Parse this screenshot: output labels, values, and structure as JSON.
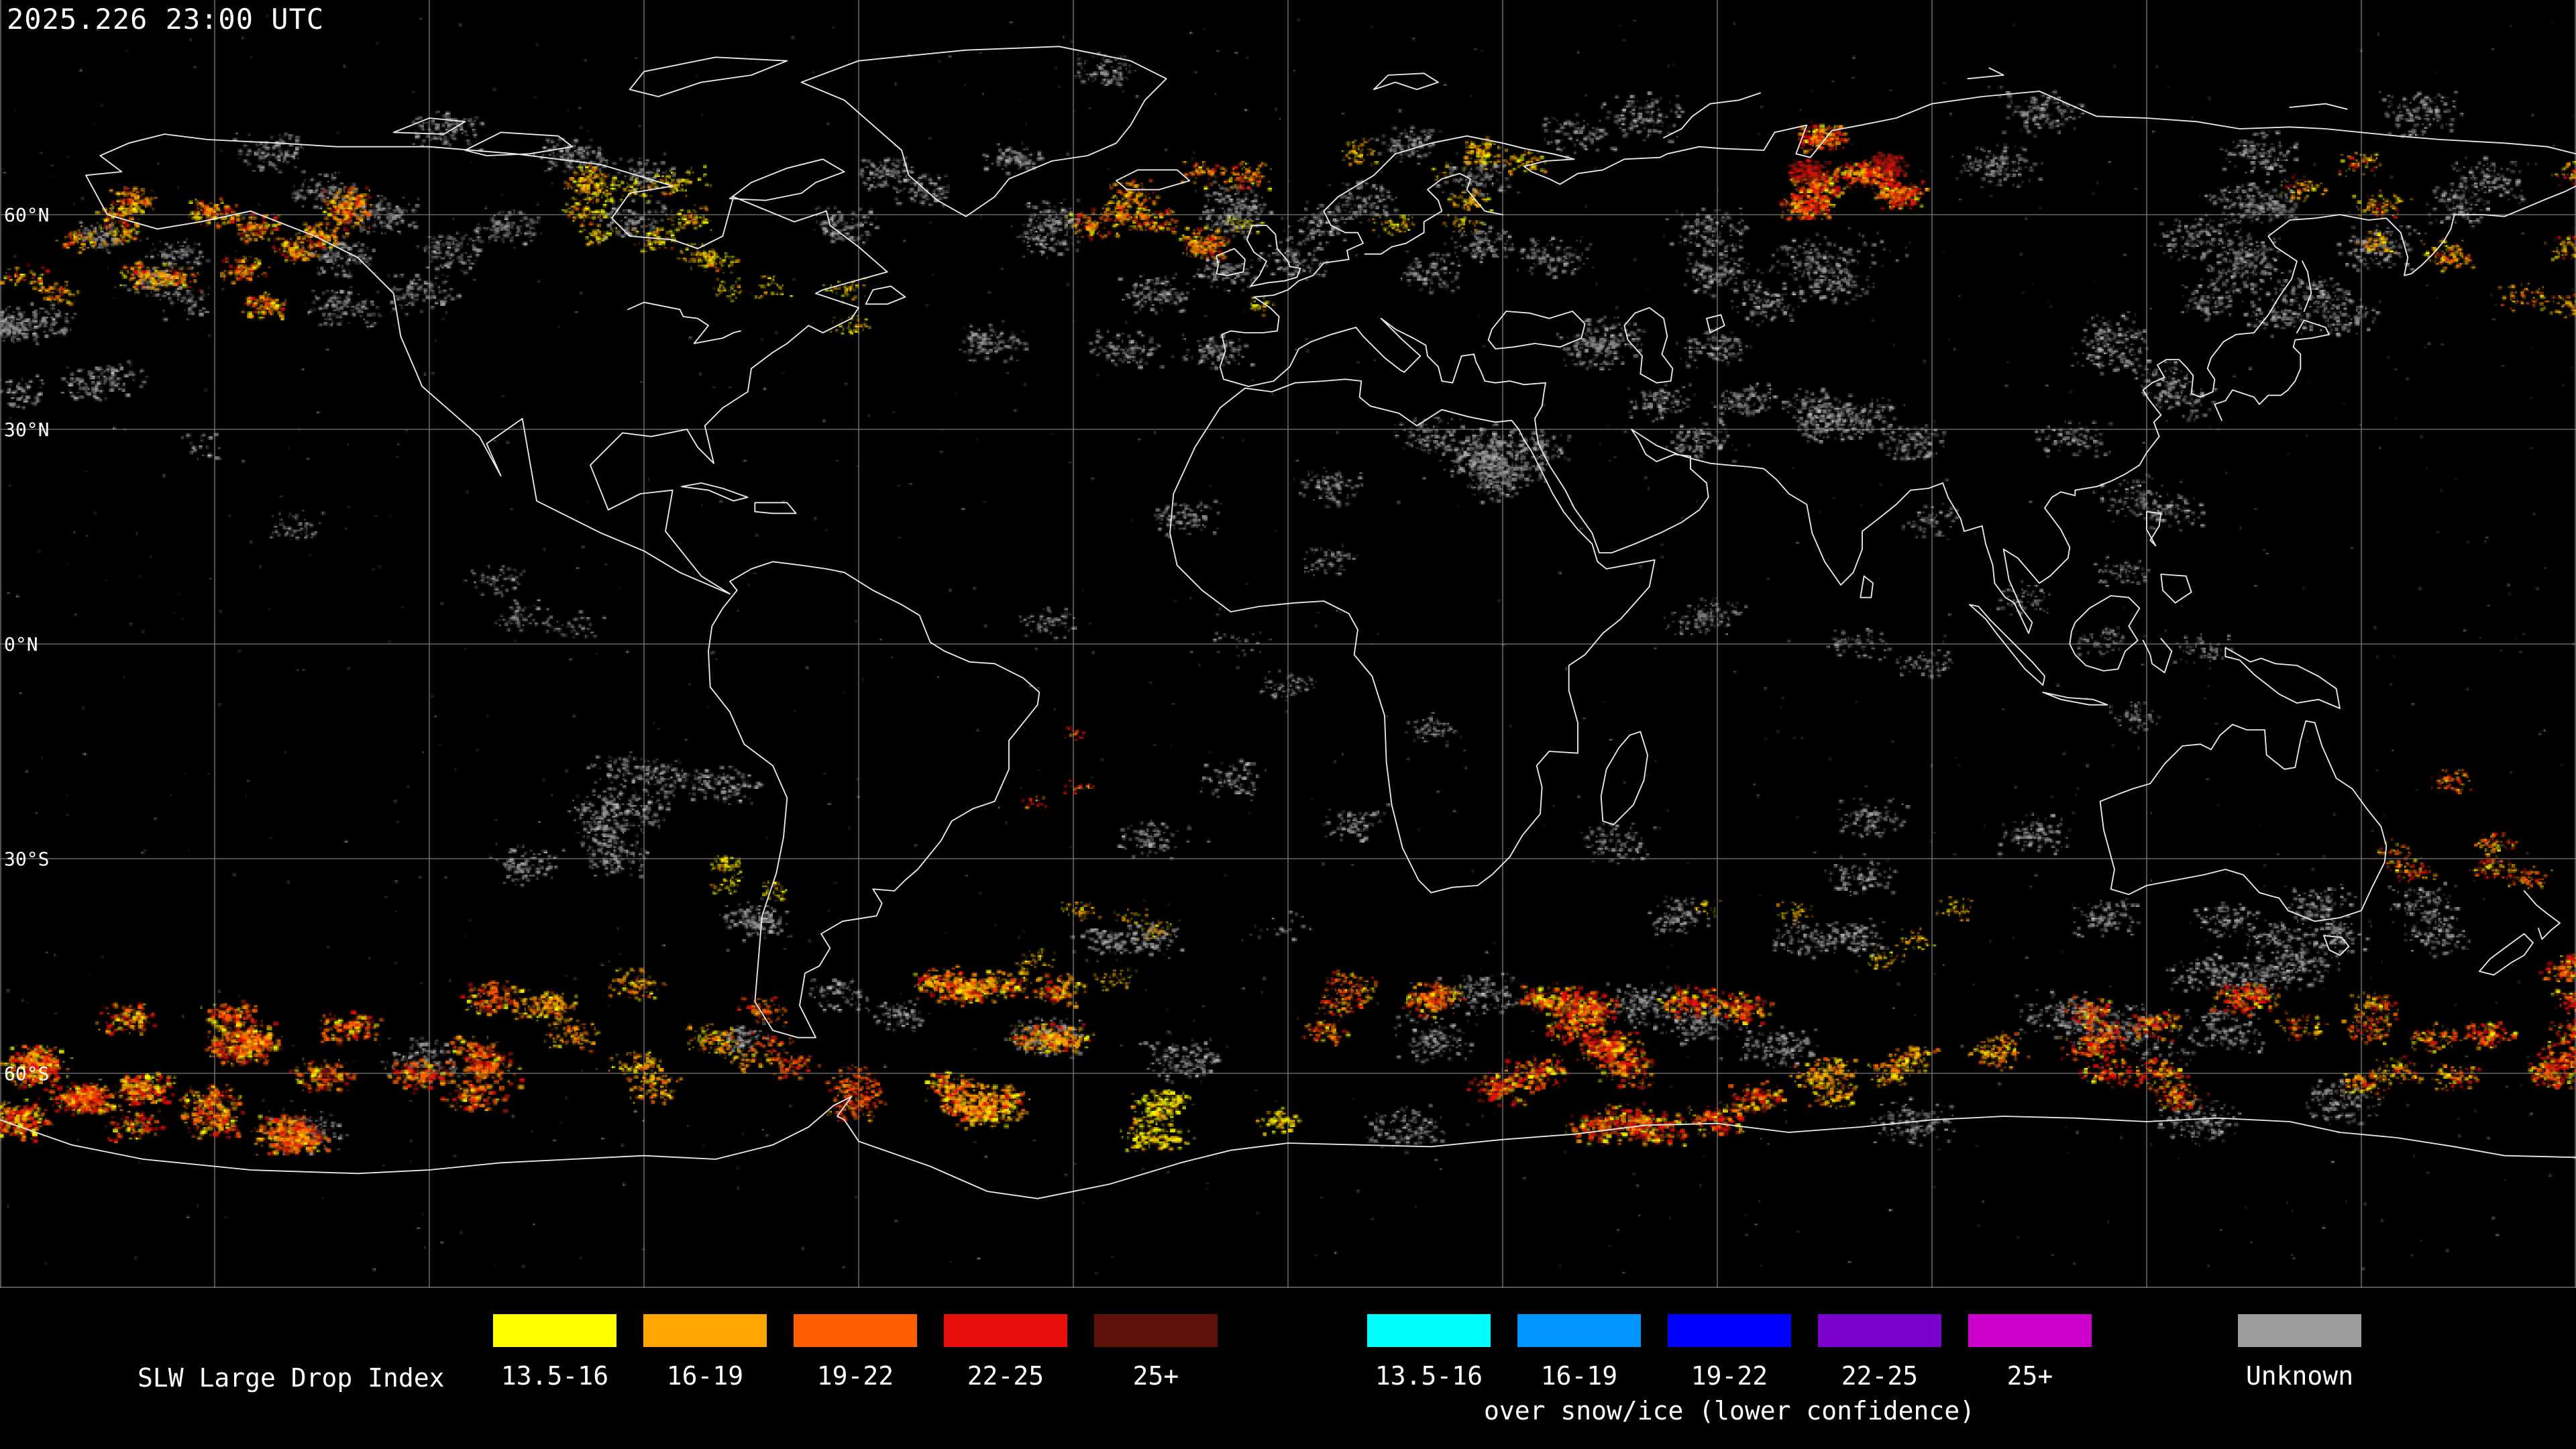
{
  "title_bar": {
    "timestamp": "2025.226 23:00 UTC"
  },
  "map": {
    "lat_labels": [
      {
        "label": "60°N"
      },
      {
        "label": "30°N"
      },
      {
        "label": "0°N"
      },
      {
        "label": "30°S"
      },
      {
        "label": "60°S"
      }
    ],
    "speckle_regions": [
      {
        "b": [
          -180,
          88,
          180,
          -88
        ],
        "n": 1200,
        "c": [
          "#9a9a9a",
          "#787878",
          "#bdbdbd",
          "#5a5a5a"
        ],
        "cl": 1,
        "sp": 0,
        "sz": 1.2,
        "a": 0.3
      },
      {
        "b": [
          -180,
          62,
          -148,
          44
        ],
        "n": 500,
        "c": [
          "#9a9a9a",
          "#787878",
          "#bdbdbd",
          "#5a5a5a"
        ],
        "cl": 90,
        "sp": 2.5,
        "sz": 2
      },
      {
        "b": [
          -150,
          73,
          -58,
          47
        ],
        "n": 1400,
        "c": [
          "#9a9a9a",
          "#787878",
          "#bdbdbd",
          "#5a5a5a"
        ],
        "cl": 110,
        "sp": 3,
        "sz": 2
      },
      {
        "b": [
          -62,
          65,
          -6,
          40
        ],
        "n": 800,
        "c": [
          "#9a9a9a",
          "#787878",
          "#bdbdbd",
          "#5a5a5a"
        ],
        "cl": 100,
        "sp": 3,
        "sz": 2
      },
      {
        "b": [
          -57,
          82,
          -18,
          59
        ],
        "n": 450,
        "c": [
          "#9a9a9a",
          "#787878",
          "#bdbdbd",
          "#5a5a5a"
        ],
        "cl": 90,
        "sp": 2.5,
        "sz": 2
      },
      {
        "b": [
          -6,
          73,
          45,
          49
        ],
        "n": 900,
        "c": [
          "#9a9a9a",
          "#787878",
          "#bdbdbd",
          "#5a5a5a"
        ],
        "cl": 100,
        "sp": 3,
        "sz": 2
      },
      {
        "b": [
          45,
          76,
          180,
          50
        ],
        "n": 1700,
        "c": [
          "#9a9a9a",
          "#787878",
          "#bdbdbd",
          "#5a5a5a"
        ],
        "cl": 120,
        "sp": 3.5,
        "sz": 2
      },
      {
        "b": [
          -16,
          36,
          36,
          13
        ],
        "n": 900,
        "c": [
          "#9a9a9a",
          "#787878",
          "#bdbdbd",
          "#5a5a5a"
        ],
        "cl": 90,
        "sp": 3,
        "sz": 2
      },
      {
        "b": [
          34,
          52,
          92,
          23
        ],
        "n": 1100,
        "c": [
          "#9a9a9a",
          "#787878",
          "#bdbdbd",
          "#5a5a5a"
        ],
        "cl": 100,
        "sp": 3,
        "sz": 2
      },
      {
        "b": [
          92,
          47,
          128,
          18
        ],
        "n": 550,
        "c": [
          "#9a9a9a",
          "#787878",
          "#bdbdbd",
          "#5a5a5a"
        ],
        "cl": 80,
        "sp": 3,
        "sz": 2
      },
      {
        "b": [
          128,
          62,
          180,
          42
        ],
        "n": 650,
        "c": [
          "#9a9a9a",
          "#787878",
          "#bdbdbd",
          "#5a5a5a"
        ],
        "cl": 90,
        "sp": 3,
        "sz": 2
      },
      {
        "b": [
          -178,
          48,
          -150,
          25
        ],
        "n": 260,
        "c": [
          "#9a9a9a",
          "#787878",
          "#bdbdbd"
        ],
        "cl": 60,
        "sp": 2.5,
        "sz": 2
      },
      {
        "b": [
          -114,
          -17,
          -69,
          -37
        ],
        "n": 700,
        "c": [
          "#9a9a9a",
          "#787878",
          "#bdbdbd"
        ],
        "cl": 90,
        "sp": 3,
        "sz": 2
      },
      {
        "b": [
          -42,
          -18,
          12,
          -42
        ],
        "n": 420,
        "c": [
          "#9a9a9a",
          "#787878",
          "#bdbdbd"
        ],
        "cl": 80,
        "sp": 3,
        "sz": 2
      },
      {
        "b": [
          38,
          -23,
          112,
          -46
        ],
        "n": 650,
        "c": [
          "#9a9a9a",
          "#787878",
          "#bdbdbd"
        ],
        "cl": 90,
        "sp": 3,
        "sz": 2
      },
      {
        "b": [
          108,
          -31,
          180,
          -50
        ],
        "n": 700,
        "c": [
          "#9a9a9a",
          "#787878",
          "#bdbdbd"
        ],
        "cl": 90,
        "sp": 3,
        "sz": 2
      },
      {
        "b": [
          -180,
          -44,
          180,
          -69
        ],
        "n": 2400,
        "c": [
          "#9a9a9a",
          "#787878",
          "#bdbdbd",
          "#5a5a5a"
        ],
        "cl": 130,
        "sp": 3.5,
        "sz": 2
      },
      {
        "b": [
          -82,
          -28,
          -54,
          -56
        ],
        "n": 350,
        "c": [
          "#9a9a9a",
          "#787878",
          "#bdbdbd"
        ],
        "cl": 70,
        "sp": 2.5,
        "sz": 2
      },
      {
        "b": [
          88,
          12,
          152,
          -12
        ],
        "n": 300,
        "c": [
          "#9a9a9a",
          "#787878"
        ],
        "cl": 60,
        "sp": 2.5,
        "sz": 1.6
      },
      {
        "b": [
          -50,
          12,
          36,
          -12
        ],
        "n": 260,
        "c": [
          "#9a9a9a",
          "#787878"
        ],
        "cl": 60,
        "sp": 2.5,
        "sz": 1.6
      },
      {
        "b": [
          52,
          20,
          92,
          -5
        ],
        "n": 300,
        "c": [
          "#9a9a9a",
          "#787878"
        ],
        "cl": 60,
        "sp": 2.5,
        "sz": 1.6
      },
      {
        "b": [
          -140,
          20,
          -100,
          -5
        ],
        "n": 220,
        "c": [
          "#9a9a9a",
          "#787878"
        ],
        "cl": 60,
        "sp": 2.5,
        "sz": 1.6
      },
      {
        "b": [
          -163,
          63,
          -127,
          47
        ],
        "n": 1000,
        "c": [
          "#ffa500",
          "#e8100c",
          "#ffff00",
          "#ff5f00"
        ],
        "cl": 90,
        "sp": 2.2,
        "sz": 2.2
      },
      {
        "b": [
          -127,
          69,
          -62,
          51
        ],
        "n": 420,
        "c": [
          "#ffff00",
          "#ffa500",
          "#ff5f00"
        ],
        "cl": 60,
        "sp": 2,
        "sz": 1.8
      },
      {
        "b": [
          -46,
          67,
          -4,
          55
        ],
        "n": 600,
        "c": [
          "#ffa500",
          "#ff5f00",
          "#ffff00",
          "#e8100c"
        ],
        "cl": 80,
        "sp": 2.2,
        "sz": 2
      },
      {
        "b": [
          8,
          71,
          46,
          59
        ],
        "n": 260,
        "c": [
          "#ffa500",
          "#ffff00"
        ],
        "cl": 50,
        "sp": 2,
        "sz": 1.8
      },
      {
        "b": [
          62,
          71,
          98,
          60
        ],
        "n": 850,
        "c": [
          "#e8100c",
          "#ff5f00",
          "#ffa500",
          "#ffff00"
        ],
        "cl": 160,
        "sp": 2.2,
        "sz": 2.4
      },
      {
        "b": [
          70,
          69,
          84,
          63
        ],
        "n": 260,
        "c": [
          "#7a150c",
          "#e8100c"
        ],
        "cl": 130,
        "sp": 1.6,
        "sz": 2.2
      },
      {
        "b": [
          138,
          69,
          180,
          54
        ],
        "n": 300,
        "c": [
          "#ffa500",
          "#ffff00",
          "#e8100c"
        ],
        "cl": 50,
        "sp": 2,
        "sz": 1.8
      },
      {
        "b": [
          -180,
          62,
          -160,
          48
        ],
        "n": 280,
        "c": [
          "#ffa500",
          "#e8100c",
          "#ffff00"
        ],
        "cl": 60,
        "sp": 2,
        "sz": 2
      },
      {
        "b": [
          -98,
          66,
          -68,
          54
        ],
        "n": 170,
        "c": [
          "#ffff00",
          "#ffa500"
        ],
        "cl": 40,
        "sp": 1.8,
        "sz": 1.6
      },
      {
        "b": [
          -10,
          63,
          32,
          47
        ],
        "n": 140,
        "c": [
          "#ffff00",
          "#ffa500"
        ],
        "cl": 30,
        "sp": 1.6,
        "sz": 1.4
      },
      {
        "b": [
          -82,
          52,
          -58,
          41
        ],
        "n": 130,
        "c": [
          "#ffff00",
          "#ffa500"
        ],
        "cl": 35,
        "sp": 1.8,
        "sz": 1.4
      },
      {
        "b": [
          150,
          62,
          180,
          46
        ],
        "n": 200,
        "c": [
          "#ffa500",
          "#ff5f00",
          "#ffff00"
        ],
        "cl": 45,
        "sp": 2,
        "sz": 1.8
      },
      {
        "b": [
          -180,
          -47,
          -153,
          -69
        ],
        "n": 1300,
        "c": [
          "#e8100c",
          "#ffff00",
          "#ff5f00",
          "#ffa500"
        ],
        "cl": 110,
        "sp": 2.4,
        "sz": 2.4
      },
      {
        "b": [
          -155,
          -49,
          -110,
          -69
        ],
        "n": 1900,
        "c": [
          "#ff5f00",
          "#e8100c",
          "#ffa500",
          "#ffff00",
          "#7a150c"
        ],
        "cl": 120,
        "sp": 2.6,
        "sz": 2.6
      },
      {
        "b": [
          -112,
          -47,
          -74,
          -63
        ],
        "n": 600,
        "c": [
          "#ffa500",
          "#ff5f00",
          "#ffff00"
        ],
        "cl": 80,
        "sp": 2.4,
        "sz": 2
      },
      {
        "b": [
          -76,
          -51,
          -54,
          -67
        ],
        "n": 380,
        "c": [
          "#ff5f00",
          "#e8100c",
          "#ffa500"
        ],
        "cl": 70,
        "sp": 2.2,
        "sz": 2
      },
      {
        "b": [
          -58,
          -47,
          -24,
          -66
        ],
        "n": 1200,
        "c": [
          "#ffa500",
          "#ffff00",
          "#ff5f00",
          "#e8100c"
        ],
        "cl": 100,
        "sp": 2.4,
        "sz": 2.4
      },
      {
        "b": [
          -26,
          -63,
          2,
          -70
        ],
        "n": 320,
        "c": [
          "#ffff00",
          "#ffa500"
        ],
        "cl": 60,
        "sp": 2,
        "sz": 2.2
      },
      {
        "b": [
          3,
          -47,
          28,
          -61
        ],
        "n": 420,
        "c": [
          "#ff5f00",
          "#e8100c",
          "#ffa500",
          "#ffff00"
        ],
        "cl": 70,
        "sp": 2.2,
        "sz": 2
      },
      {
        "b": [
          28,
          -49,
          72,
          -70
        ],
        "n": 1900,
        "c": [
          "#e8100c",
          "#ff5f00",
          "#ffa500",
          "#ffff00",
          "#7a150c"
        ],
        "cl": 120,
        "sp": 2.6,
        "sz": 2.6
      },
      {
        "b": [
          72,
          -49,
          100,
          -63
        ],
        "n": 500,
        "c": [
          "#ffa500",
          "#ff5f00",
          "#ffff00"
        ],
        "cl": 75,
        "sp": 2.2,
        "sz": 2
      },
      {
        "b": [
          100,
          -49,
          136,
          -64
        ],
        "n": 800,
        "c": [
          "#e8100c",
          "#ff5f00",
          "#ffa500",
          "#ffff00"
        ],
        "cl": 90,
        "sp": 2.4,
        "sz": 2.2
      },
      {
        "b": [
          136,
          -49,
          163,
          -63
        ],
        "n": 500,
        "c": [
          "#ffa500",
          "#ff5f00",
          "#e8100c",
          "#ffff00"
        ],
        "cl": 75,
        "sp": 2.2,
        "sz": 2
      },
      {
        "b": [
          162,
          -43,
          180,
          -61
        ],
        "n": 650,
        "c": [
          "#e8100c",
          "#ff5f00",
          "#ffa500",
          "#ffff00"
        ],
        "cl": 85,
        "sp": 2.2,
        "sz": 2.2
      },
      {
        "b": [
          148,
          -19,
          180,
          -37
        ],
        "n": 300,
        "c": [
          "#ff5f00",
          "#e8100c",
          "#ffa500",
          "#ffff00"
        ],
        "cl": 55,
        "sp": 2,
        "sz": 1.8
      },
      {
        "b": [
          -79,
          -29,
          -69,
          -41
        ],
        "n": 120,
        "c": [
          "#ffff00",
          "#ffa500"
        ],
        "cl": 30,
        "sp": 1.5,
        "sz": 1.4
      },
      {
        "b": [
          -46,
          -36,
          -18,
          -48
        ],
        "n": 160,
        "c": [
          "#ffa500",
          "#ffff00"
        ],
        "cl": 35,
        "sp": 1.8,
        "sz": 1.4
      },
      {
        "b": [
          58,
          -36,
          102,
          -48
        ],
        "n": 160,
        "c": [
          "#ffa500",
          "#ffff00"
        ],
        "cl": 35,
        "sp": 1.8,
        "sz": 1.4
      },
      {
        "b": [
          -40,
          -12,
          -28,
          -22
        ],
        "n": 60,
        "c": [
          "#e8100c",
          "#ffa500"
        ],
        "cl": 20,
        "sp": 1.2,
        "sz": 1.3
      }
    ]
  },
  "legend": {
    "title": "SLW Large Drop Index",
    "scale": [
      {
        "label": "13.5-16",
        "color": "#ffff00"
      },
      {
        "label": "16-19",
        "color": "#ffa500"
      },
      {
        "label": "19-22",
        "color": "#ff5f00"
      },
      {
        "label": "22-25",
        "color": "#e8100c"
      },
      {
        "label": "25+",
        "color": "#5e100a"
      }
    ],
    "snow_ice_scale": [
      {
        "label": "13.5-16",
        "color": "#00ffff"
      },
      {
        "label": "16-19",
        "color": "#0095ff"
      },
      {
        "label": "19-22",
        "color": "#0000ff"
      },
      {
        "label": "22-25",
        "color": "#7a00cc"
      },
      {
        "label": "25+",
        "color": "#cc00cc"
      }
    ],
    "snow_ice_caption": "over snow/ice (lower confidence)",
    "unknown": {
      "label": "Unknown",
      "color": "#9e9e9e"
    }
  }
}
